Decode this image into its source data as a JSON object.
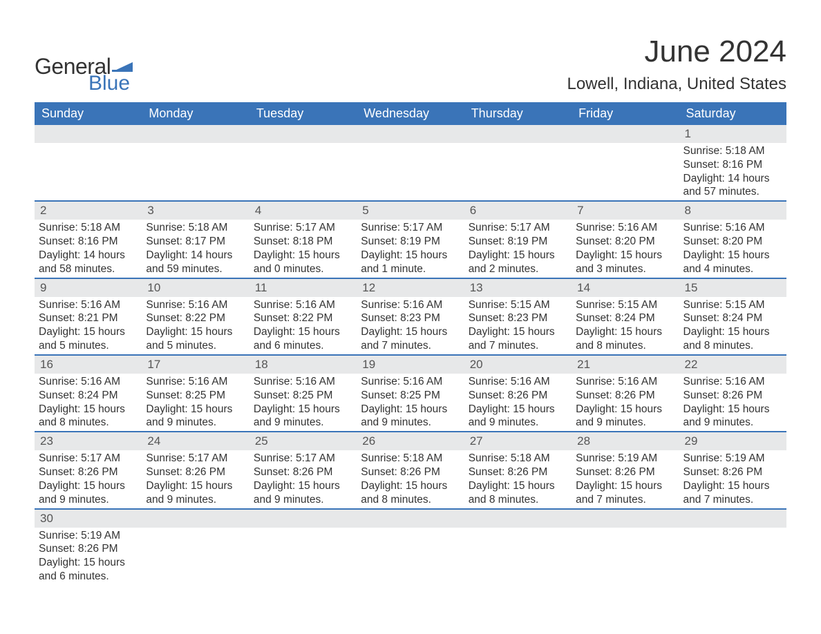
{
  "brand": {
    "general": "General",
    "blue": "Blue",
    "accent": "#3a74b8"
  },
  "title": "June 2024",
  "location": "Lowell, Indiana, United States",
  "colors": {
    "header_bg": "#3a74b8",
    "header_text": "#ffffff",
    "daynum_bg": "#e7e8e9",
    "text": "#333333",
    "row_border": "#3a74b8",
    "background": "#ffffff"
  },
  "layout": {
    "columns": 7,
    "cell_font_size_pt": 12,
    "header_font_size_pt": 14,
    "title_font_size_pt": 33,
    "location_font_size_pt": 18
  },
  "weekdays": [
    "Sunday",
    "Monday",
    "Tuesday",
    "Wednesday",
    "Thursday",
    "Friday",
    "Saturday"
  ],
  "weeks": [
    [
      {
        "n": "",
        "sunrise": "",
        "sunset": "",
        "daylight": ""
      },
      {
        "n": "",
        "sunrise": "",
        "sunset": "",
        "daylight": ""
      },
      {
        "n": "",
        "sunrise": "",
        "sunset": "",
        "daylight": ""
      },
      {
        "n": "",
        "sunrise": "",
        "sunset": "",
        "daylight": ""
      },
      {
        "n": "",
        "sunrise": "",
        "sunset": "",
        "daylight": ""
      },
      {
        "n": "",
        "sunrise": "",
        "sunset": "",
        "daylight": ""
      },
      {
        "n": "1",
        "sunrise": "Sunrise: 5:18 AM",
        "sunset": "Sunset: 8:16 PM",
        "daylight": "Daylight: 14 hours and 57 minutes."
      }
    ],
    [
      {
        "n": "2",
        "sunrise": "Sunrise: 5:18 AM",
        "sunset": "Sunset: 8:16 PM",
        "daylight": "Daylight: 14 hours and 58 minutes."
      },
      {
        "n": "3",
        "sunrise": "Sunrise: 5:18 AM",
        "sunset": "Sunset: 8:17 PM",
        "daylight": "Daylight: 14 hours and 59 minutes."
      },
      {
        "n": "4",
        "sunrise": "Sunrise: 5:17 AM",
        "sunset": "Sunset: 8:18 PM",
        "daylight": "Daylight: 15 hours and 0 minutes."
      },
      {
        "n": "5",
        "sunrise": "Sunrise: 5:17 AM",
        "sunset": "Sunset: 8:19 PM",
        "daylight": "Daylight: 15 hours and 1 minute."
      },
      {
        "n": "6",
        "sunrise": "Sunrise: 5:17 AM",
        "sunset": "Sunset: 8:19 PM",
        "daylight": "Daylight: 15 hours and 2 minutes."
      },
      {
        "n": "7",
        "sunrise": "Sunrise: 5:16 AM",
        "sunset": "Sunset: 8:20 PM",
        "daylight": "Daylight: 15 hours and 3 minutes."
      },
      {
        "n": "8",
        "sunrise": "Sunrise: 5:16 AM",
        "sunset": "Sunset: 8:20 PM",
        "daylight": "Daylight: 15 hours and 4 minutes."
      }
    ],
    [
      {
        "n": "9",
        "sunrise": "Sunrise: 5:16 AM",
        "sunset": "Sunset: 8:21 PM",
        "daylight": "Daylight: 15 hours and 5 minutes."
      },
      {
        "n": "10",
        "sunrise": "Sunrise: 5:16 AM",
        "sunset": "Sunset: 8:22 PM",
        "daylight": "Daylight: 15 hours and 5 minutes."
      },
      {
        "n": "11",
        "sunrise": "Sunrise: 5:16 AM",
        "sunset": "Sunset: 8:22 PM",
        "daylight": "Daylight: 15 hours and 6 minutes."
      },
      {
        "n": "12",
        "sunrise": "Sunrise: 5:16 AM",
        "sunset": "Sunset: 8:23 PM",
        "daylight": "Daylight: 15 hours and 7 minutes."
      },
      {
        "n": "13",
        "sunrise": "Sunrise: 5:15 AM",
        "sunset": "Sunset: 8:23 PM",
        "daylight": "Daylight: 15 hours and 7 minutes."
      },
      {
        "n": "14",
        "sunrise": "Sunrise: 5:15 AM",
        "sunset": "Sunset: 8:24 PM",
        "daylight": "Daylight: 15 hours and 8 minutes."
      },
      {
        "n": "15",
        "sunrise": "Sunrise: 5:15 AM",
        "sunset": "Sunset: 8:24 PM",
        "daylight": "Daylight: 15 hours and 8 minutes."
      }
    ],
    [
      {
        "n": "16",
        "sunrise": "Sunrise: 5:16 AM",
        "sunset": "Sunset: 8:24 PM",
        "daylight": "Daylight: 15 hours and 8 minutes."
      },
      {
        "n": "17",
        "sunrise": "Sunrise: 5:16 AM",
        "sunset": "Sunset: 8:25 PM",
        "daylight": "Daylight: 15 hours and 9 minutes."
      },
      {
        "n": "18",
        "sunrise": "Sunrise: 5:16 AM",
        "sunset": "Sunset: 8:25 PM",
        "daylight": "Daylight: 15 hours and 9 minutes."
      },
      {
        "n": "19",
        "sunrise": "Sunrise: 5:16 AM",
        "sunset": "Sunset: 8:25 PM",
        "daylight": "Daylight: 15 hours and 9 minutes."
      },
      {
        "n": "20",
        "sunrise": "Sunrise: 5:16 AM",
        "sunset": "Sunset: 8:26 PM",
        "daylight": "Daylight: 15 hours and 9 minutes."
      },
      {
        "n": "21",
        "sunrise": "Sunrise: 5:16 AM",
        "sunset": "Sunset: 8:26 PM",
        "daylight": "Daylight: 15 hours and 9 minutes."
      },
      {
        "n": "22",
        "sunrise": "Sunrise: 5:16 AM",
        "sunset": "Sunset: 8:26 PM",
        "daylight": "Daylight: 15 hours and 9 minutes."
      }
    ],
    [
      {
        "n": "23",
        "sunrise": "Sunrise: 5:17 AM",
        "sunset": "Sunset: 8:26 PM",
        "daylight": "Daylight: 15 hours and 9 minutes."
      },
      {
        "n": "24",
        "sunrise": "Sunrise: 5:17 AM",
        "sunset": "Sunset: 8:26 PM",
        "daylight": "Daylight: 15 hours and 9 minutes."
      },
      {
        "n": "25",
        "sunrise": "Sunrise: 5:17 AM",
        "sunset": "Sunset: 8:26 PM",
        "daylight": "Daylight: 15 hours and 9 minutes."
      },
      {
        "n": "26",
        "sunrise": "Sunrise: 5:18 AM",
        "sunset": "Sunset: 8:26 PM",
        "daylight": "Daylight: 15 hours and 8 minutes."
      },
      {
        "n": "27",
        "sunrise": "Sunrise: 5:18 AM",
        "sunset": "Sunset: 8:26 PM",
        "daylight": "Daylight: 15 hours and 8 minutes."
      },
      {
        "n": "28",
        "sunrise": "Sunrise: 5:19 AM",
        "sunset": "Sunset: 8:26 PM",
        "daylight": "Daylight: 15 hours and 7 minutes."
      },
      {
        "n": "29",
        "sunrise": "Sunrise: 5:19 AM",
        "sunset": "Sunset: 8:26 PM",
        "daylight": "Daylight: 15 hours and 7 minutes."
      }
    ],
    [
      {
        "n": "30",
        "sunrise": "Sunrise: 5:19 AM",
        "sunset": "Sunset: 8:26 PM",
        "daylight": "Daylight: 15 hours and 6 minutes."
      },
      {
        "n": "",
        "sunrise": "",
        "sunset": "",
        "daylight": ""
      },
      {
        "n": "",
        "sunrise": "",
        "sunset": "",
        "daylight": ""
      },
      {
        "n": "",
        "sunrise": "",
        "sunset": "",
        "daylight": ""
      },
      {
        "n": "",
        "sunrise": "",
        "sunset": "",
        "daylight": ""
      },
      {
        "n": "",
        "sunrise": "",
        "sunset": "",
        "daylight": ""
      },
      {
        "n": "",
        "sunrise": "",
        "sunset": "",
        "daylight": ""
      }
    ]
  ]
}
